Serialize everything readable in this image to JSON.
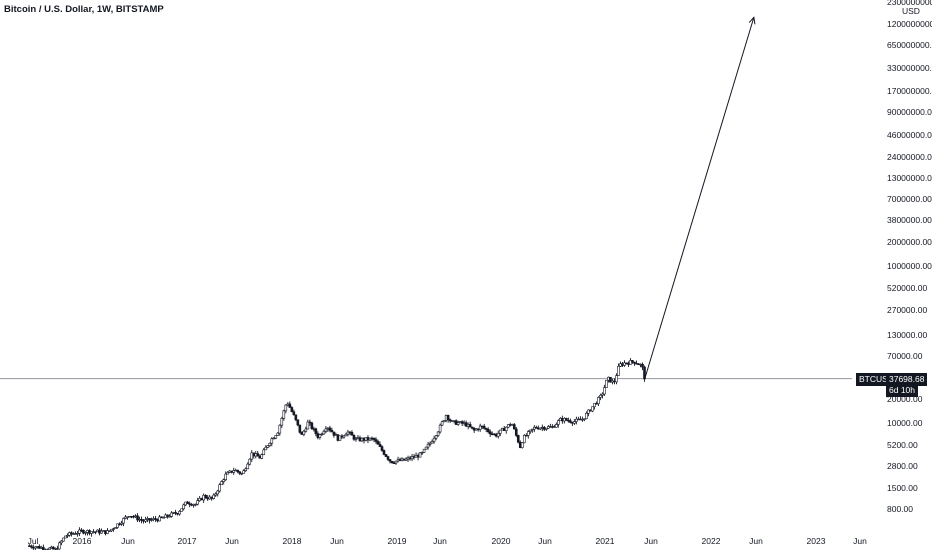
{
  "header": {
    "title": "Bitcoin / U.S. Dollar, 1W, BITSTAMP"
  },
  "price_scale": {
    "unit": "USD",
    "labels": [
      "2300000000.00",
      "1200000000.00",
      "650000000.00",
      "330000000.00",
      "170000000.00",
      "90000000.00",
      "46000000.00",
      "24000000.00",
      "13000000.00",
      "7000000.00",
      "3800000.00",
      "2000000.00",
      "1000000.00",
      "520000.00",
      "270000.00",
      "130000.00",
      "70000.00",
      "20000.00",
      "10000.00",
      "5200.00",
      "2800.00",
      "1500.00",
      "800.00"
    ]
  },
  "time_scale": {
    "labels": [
      "Jul",
      "2016",
      "Jun",
      "2017",
      "Jun",
      "2018",
      "Jun",
      "2019",
      "Jun",
      "2020",
      "Jun",
      "2021",
      "Jun",
      "2022",
      "Jun",
      "2023",
      "Jun"
    ]
  },
  "price_tag": {
    "symbol": "BTCUSD",
    "price": "37698.68",
    "countdown": "6d 10h"
  },
  "colors": {
    "candle": "#131722",
    "horizontal_line": "#9598a1",
    "tag_bg": "#131722",
    "background": "#ffffff"
  },
  "chart_data": {
    "type": "candlestick",
    "title": "Bitcoin / U.S. Dollar, 1W, BITSTAMP",
    "scale": "log",
    "y_unit": "USD",
    "ylim": [
      430,
      2600000000
    ],
    "xlim": [
      "2015-05-01",
      "2023-12-15"
    ],
    "last_price": 37698.68,
    "horizontal_line": 37698.68,
    "weekly_close_path": [
      [
        "2015-07-01",
        280
      ],
      [
        "2015-10-01",
        250
      ],
      [
        "2015-11-05",
        380
      ],
      [
        "2016-01-01",
        430
      ],
      [
        "2016-04-01",
        420
      ],
      [
        "2016-06-15",
        700
      ],
      [
        "2016-08-01",
        580
      ],
      [
        "2016-10-01",
        620
      ],
      [
        "2016-12-01",
        750
      ],
      [
        "2017-01-01",
        1000
      ],
      [
        "2017-02-01",
        950
      ],
      [
        "2017-03-01",
        1200
      ],
      [
        "2017-04-01",
        1100
      ],
      [
        "2017-05-15",
        2200
      ],
      [
        "2017-06-15",
        2600
      ],
      [
        "2017-07-15",
        2300
      ],
      [
        "2017-08-15",
        4200
      ],
      [
        "2017-09-15",
        3700
      ],
      [
        "2017-10-15",
        5800
      ],
      [
        "2017-11-15",
        8000
      ],
      [
        "2017-12-17",
        19500
      ],
      [
        "2018-01-15",
        11500
      ],
      [
        "2018-02-06",
        7000
      ],
      [
        "2018-03-01",
        10500
      ],
      [
        "2018-04-06",
        6800
      ],
      [
        "2018-05-05",
        9500
      ],
      [
        "2018-06-15",
        6400
      ],
      [
        "2018-07-15",
        8000
      ],
      [
        "2018-08-15",
        6300
      ],
      [
        "2018-10-15",
        6400
      ],
      [
        "2018-11-20",
        4300
      ],
      [
        "2018-12-15",
        3300
      ],
      [
        "2019-02-01",
        3450
      ],
      [
        "2019-04-01",
        4100
      ],
      [
        "2019-05-01",
        5700
      ],
      [
        "2019-06-01",
        8600
      ],
      [
        "2019-06-26",
        13000
      ],
      [
        "2019-07-15",
        10500
      ],
      [
        "2019-09-01",
        10000
      ],
      [
        "2019-10-01",
        8200
      ],
      [
        "2019-10-26",
        9300
      ],
      [
        "2019-12-15",
        7100
      ],
      [
        "2020-02-10",
        10300
      ],
      [
        "2020-03-12",
        5000
      ],
      [
        "2020-03-20",
        6500
      ],
      [
        "2020-05-01",
        9000
      ],
      [
        "2020-07-01",
        9100
      ],
      [
        "2020-08-01",
        11500
      ],
      [
        "2020-09-15",
        10700
      ],
      [
        "2020-10-15",
        11500
      ],
      [
        "2020-11-15",
        16000
      ],
      [
        "2020-12-20",
        23000
      ],
      [
        "2021-01-10",
        38000
      ],
      [
        "2021-02-01",
        33000
      ],
      [
        "2021-02-20",
        56000
      ],
      [
        "2021-03-13",
        60000
      ],
      [
        "2021-04-14",
        62000
      ],
      [
        "2021-05-10",
        55000
      ],
      [
        "2021-05-20",
        37698.68
      ]
    ],
    "annotation_arrow": {
      "from": [
        "2021-05-20",
        37698.68
      ],
      "to": [
        "2022-06-05",
        1500000000
      ]
    }
  }
}
